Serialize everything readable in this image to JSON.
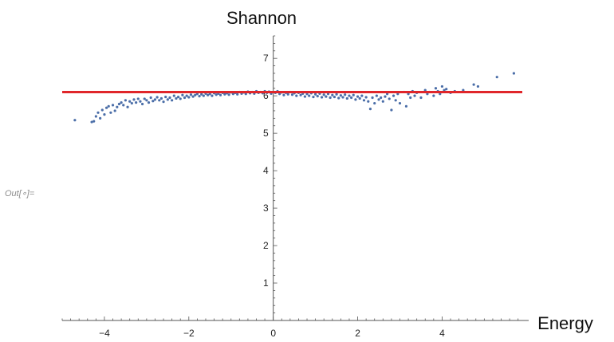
{
  "cell": {
    "label": "Out[∘]="
  },
  "chart_data": {
    "type": "scatter",
    "title": "Shannon",
    "xlabel": "Energy",
    "ylabel": "",
    "xlim": [
      -5.0,
      5.9
    ],
    "ylim": [
      0,
      7.6
    ],
    "x_ticks": [
      -4,
      -2,
      0,
      2,
      4
    ],
    "y_ticks": [
      1,
      2,
      3,
      4,
      5,
      6,
      7
    ],
    "reference_line": {
      "y": 6.1,
      "color": "#e0262a"
    },
    "point_color": "#4b6ea8",
    "series": [
      {
        "points": [
          [
            -4.7,
            5.35
          ],
          [
            -4.3,
            5.3
          ],
          [
            -4.25,
            5.32
          ],
          [
            -4.2,
            5.45
          ],
          [
            -4.15,
            5.55
          ],
          [
            -4.1,
            5.4
          ],
          [
            -4.05,
            5.62
          ],
          [
            -4.0,
            5.5
          ],
          [
            -3.95,
            5.68
          ],
          [
            -3.9,
            5.72
          ],
          [
            -3.85,
            5.55
          ],
          [
            -3.8,
            5.75
          ],
          [
            -3.75,
            5.6
          ],
          [
            -3.7,
            5.7
          ],
          [
            -3.65,
            5.78
          ],
          [
            -3.6,
            5.82
          ],
          [
            -3.55,
            5.75
          ],
          [
            -3.5,
            5.88
          ],
          [
            -3.45,
            5.7
          ],
          [
            -3.4,
            5.85
          ],
          [
            -3.35,
            5.8
          ],
          [
            -3.3,
            5.9
          ],
          [
            -3.25,
            5.82
          ],
          [
            -3.2,
            5.92
          ],
          [
            -3.15,
            5.85
          ],
          [
            -3.1,
            5.78
          ],
          [
            -3.05,
            5.92
          ],
          [
            -3.0,
            5.88
          ],
          [
            -2.95,
            5.82
          ],
          [
            -2.9,
            5.95
          ],
          [
            -2.85,
            5.86
          ],
          [
            -2.8,
            5.9
          ],
          [
            -2.75,
            5.96
          ],
          [
            -2.7,
            5.88
          ],
          [
            -2.65,
            5.93
          ],
          [
            -2.6,
            5.84
          ],
          [
            -2.55,
            5.97
          ],
          [
            -2.5,
            5.9
          ],
          [
            -2.45,
            5.95
          ],
          [
            -2.4,
            5.88
          ],
          [
            -2.35,
            6.0
          ],
          [
            -2.3,
            5.93
          ],
          [
            -2.25,
            5.97
          ],
          [
            -2.2,
            5.92
          ],
          [
            -2.15,
            6.02
          ],
          [
            -2.1,
            5.95
          ],
          [
            -2.05,
            6.0
          ],
          [
            -2.0,
            5.96
          ],
          [
            -1.95,
            6.03
          ],
          [
            -1.9,
            5.98
          ],
          [
            -1.85,
            6.02
          ],
          [
            -1.8,
            6.05
          ],
          [
            -1.75,
            5.99
          ],
          [
            -1.7,
            6.04
          ],
          [
            -1.65,
            6.0
          ],
          [
            -1.6,
            6.06
          ],
          [
            -1.55,
            6.02
          ],
          [
            -1.5,
            6.05
          ],
          [
            -1.45,
            6.0
          ],
          [
            -1.4,
            6.07
          ],
          [
            -1.35,
            6.03
          ],
          [
            -1.3,
            6.06
          ],
          [
            -1.25,
            6.02
          ],
          [
            -1.2,
            6.08
          ],
          [
            -1.15,
            6.04
          ],
          [
            -1.1,
            6.07
          ],
          [
            -1.05,
            6.03
          ],
          [
            -1.0,
            6.09
          ],
          [
            -0.95,
            6.05
          ],
          [
            -0.9,
            6.08
          ],
          [
            -0.85,
            6.04
          ],
          [
            -0.8,
            6.1
          ],
          [
            -0.75,
            6.06
          ],
          [
            -0.7,
            6.09
          ],
          [
            -0.65,
            6.05
          ],
          [
            -0.6,
            6.11
          ],
          [
            -0.55,
            6.07
          ],
          [
            -0.5,
            6.1
          ],
          [
            -0.45,
            6.06
          ],
          [
            -0.4,
            6.12
          ],
          [
            -0.35,
            6.08
          ],
          [
            -0.3,
            6.1
          ],
          [
            -0.25,
            6.07
          ],
          [
            -0.2,
            6.12
          ],
          [
            -0.15,
            6.08
          ],
          [
            -0.1,
            6.11
          ],
          [
            -0.05,
            6.06
          ],
          [
            0.0,
            6.1
          ],
          [
            0.05,
            6.08
          ],
          [
            0.1,
            6.12
          ],
          [
            0.15,
            6.05
          ],
          [
            0.2,
            6.09
          ],
          [
            0.25,
            6.02
          ],
          [
            0.3,
            6.08
          ],
          [
            0.35,
            6.04
          ],
          [
            0.4,
            6.1
          ],
          [
            0.45,
            6.03
          ],
          [
            0.5,
            6.07
          ],
          [
            0.55,
            6.0
          ],
          [
            0.6,
            6.08
          ],
          [
            0.65,
            6.02
          ],
          [
            0.7,
            6.06
          ],
          [
            0.75,
            5.98
          ],
          [
            0.8,
            6.05
          ],
          [
            0.85,
            6.0
          ],
          [
            0.9,
            6.07
          ],
          [
            0.95,
            5.97
          ],
          [
            1.0,
            6.04
          ],
          [
            1.05,
            5.99
          ],
          [
            1.1,
            6.06
          ],
          [
            1.15,
            5.96
          ],
          [
            1.2,
            6.03
          ],
          [
            1.25,
            5.98
          ],
          [
            1.3,
            6.05
          ],
          [
            1.35,
            5.95
          ],
          [
            1.4,
            6.02
          ],
          [
            1.45,
            5.97
          ],
          [
            1.5,
            6.04
          ],
          [
            1.55,
            5.94
          ],
          [
            1.6,
            6.01
          ],
          [
            1.65,
            5.96
          ],
          [
            1.7,
            6.03
          ],
          [
            1.75,
            5.93
          ],
          [
            1.8,
            6.0
          ],
          [
            1.85,
            5.95
          ],
          [
            1.9,
            6.02
          ],
          [
            1.95,
            5.9
          ],
          [
            2.0,
            5.98
          ],
          [
            2.05,
            5.93
          ],
          [
            2.1,
            6.0
          ],
          [
            2.15,
            5.88
          ],
          [
            2.2,
            5.96
          ],
          [
            2.25,
            5.85
          ],
          [
            2.3,
            5.65
          ],
          [
            2.35,
            5.95
          ],
          [
            2.4,
            5.8
          ],
          [
            2.45,
            6.0
          ],
          [
            2.5,
            5.9
          ],
          [
            2.55,
            5.95
          ],
          [
            2.6,
            5.85
          ],
          [
            2.65,
            5.98
          ],
          [
            2.7,
            6.05
          ],
          [
            2.75,
            5.92
          ],
          [
            2.8,
            5.62
          ],
          [
            2.85,
            6.0
          ],
          [
            2.9,
            5.88
          ],
          [
            2.95,
            6.05
          ],
          [
            3.0,
            5.8
          ],
          [
            3.1,
            6.1
          ],
          [
            3.15,
            5.72
          ],
          [
            3.2,
            6.05
          ],
          [
            3.25,
            5.95
          ],
          [
            3.3,
            6.12
          ],
          [
            3.35,
            6.0
          ],
          [
            3.4,
            6.08
          ],
          [
            3.5,
            5.95
          ],
          [
            3.6,
            6.15
          ],
          [
            3.65,
            6.05
          ],
          [
            3.7,
            6.1
          ],
          [
            3.8,
            6.0
          ],
          [
            3.85,
            6.2
          ],
          [
            3.9,
            6.12
          ],
          [
            3.95,
            6.05
          ],
          [
            4.0,
            6.25
          ],
          [
            4.05,
            6.15
          ],
          [
            4.1,
            6.18
          ],
          [
            4.2,
            6.08
          ],
          [
            4.3,
            6.12
          ],
          [
            4.5,
            6.15
          ],
          [
            4.75,
            6.3
          ],
          [
            4.85,
            6.25
          ],
          [
            5.3,
            6.5
          ],
          [
            5.7,
            6.6
          ]
        ]
      }
    ]
  }
}
